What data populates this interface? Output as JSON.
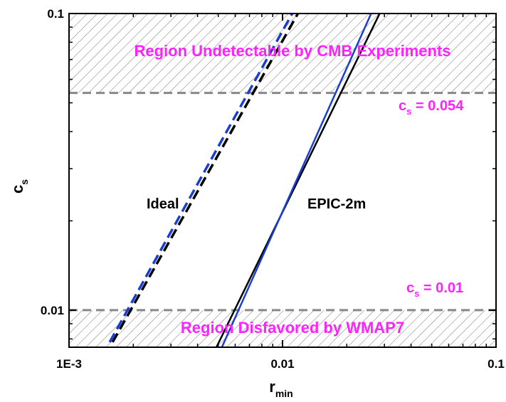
{
  "chart_data": {
    "type": "line",
    "xscale": "log",
    "yscale": "log",
    "xlim": [
      0.001,
      0.1
    ],
    "ylim": [
      0.0075,
      0.1
    ],
    "x_ticks": [
      {
        "value": 0.001,
        "label": "1E-3"
      },
      {
        "value": 0.01,
        "label": "0.01"
      },
      {
        "value": 0.1,
        "label": "0.1"
      }
    ],
    "y_ticks": [
      {
        "value": 0.01,
        "label": "0.01"
      },
      {
        "value": 0.1,
        "label": "0.1"
      }
    ],
    "xlabel": {
      "main": "r",
      "sub": "min"
    },
    "ylabel": {
      "main": "c",
      "sub": "s"
    },
    "grid": false,
    "regions": [
      {
        "y_from": 0.054,
        "y_to": 0.1,
        "label": "Region Undetectable by CMB Experiments"
      },
      {
        "y_from": 0.0075,
        "y_to": 0.01,
        "label": "Region Disfavored by WMAP7"
      }
    ],
    "thresholds": [
      {
        "value": 0.054,
        "label_main": "c",
        "label_sub": "s",
        "label_rest": " = 0.054"
      },
      {
        "value": 0.01,
        "label_main": "c",
        "label_sub": "s",
        "label_rest": " = 0.01"
      }
    ],
    "series": [
      {
        "style": "dashed",
        "color": "#000000",
        "x": [
          0.0016,
          0.0118
        ],
        "y": [
          0.0078,
          0.1
        ]
      },
      {
        "style": "dashed",
        "color": "#1a3fd0",
        "x": [
          0.00155,
          0.0111
        ],
        "y": [
          0.0078,
          0.1
        ]
      },
      {
        "style": "solid",
        "color": "#000000",
        "x": [
          0.0049,
          0.0285
        ],
        "y": [
          0.0075,
          0.1
        ]
      },
      {
        "style": "solid",
        "color": "#1a3fd0",
        "x": [
          0.0052,
          0.026
        ],
        "y": [
          0.0075,
          0.1
        ]
      }
    ],
    "annotations": [
      {
        "text": "Ideal",
        "x": 0.0032,
        "y": 0.0215
      },
      {
        "text": "EPIC-2m",
        "x": 0.018,
        "y": 0.0215
      }
    ]
  }
}
